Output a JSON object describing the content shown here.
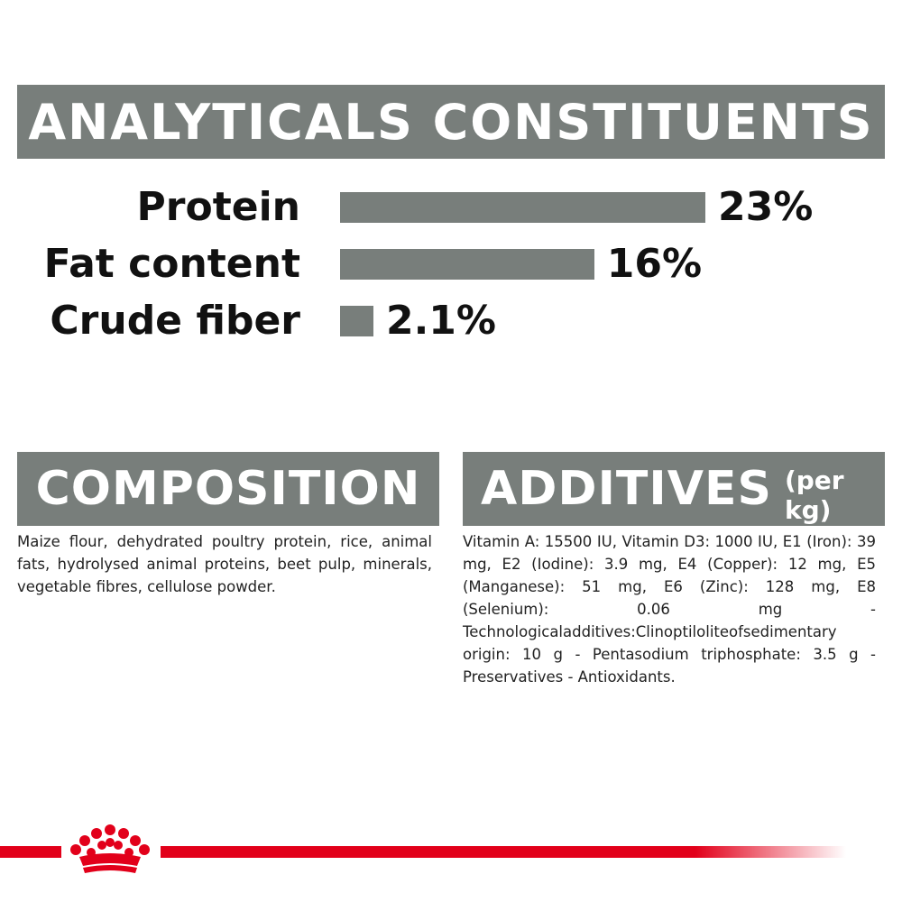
{
  "headings": {
    "analytics": "ANALYTICALS CONSTITUENTS",
    "composition": "COMPOSITION",
    "additives": "ADDITIVES",
    "additives_unit": "(per kg)"
  },
  "chart_data": {
    "type": "bar",
    "orientation": "horizontal",
    "categories": [
      "Protein",
      "Fat content",
      "Crude fiber"
    ],
    "values": [
      23,
      16,
      2.1
    ],
    "value_labels": [
      "23%",
      "16%",
      "2.1%"
    ],
    "unit": "%",
    "xlim": [
      0,
      23
    ],
    "bar_color": "#787e7b"
  },
  "composition_text": "Maize flour, dehydrated poultry protein, rice, animal fats, hydrolysed animal proteins, beet pulp, minerals, vegetable fibres, cellulose powder.",
  "additives_text": "Vitamin A: 15500 IU, Vitamin D3: 1000 IU, E1 (Iron): 39 mg, E2 (Iodine): 3.9 mg, E4 (Copper): 12 mg, E5 (Manganese): 51 mg, E6 (Zinc): 128 mg, E8 (Selenium): 0.06 mg - Technologicaladditives:Clinoptiloliteofsedimentary origin: 10 g - Pentasodium triphosphate: 3.5 g - Preservatives - Antioxidants.",
  "colors": {
    "banner": "#787e7b",
    "brand_red": "#e2001a"
  },
  "icons": {
    "logo": "crown-logo-icon"
  }
}
